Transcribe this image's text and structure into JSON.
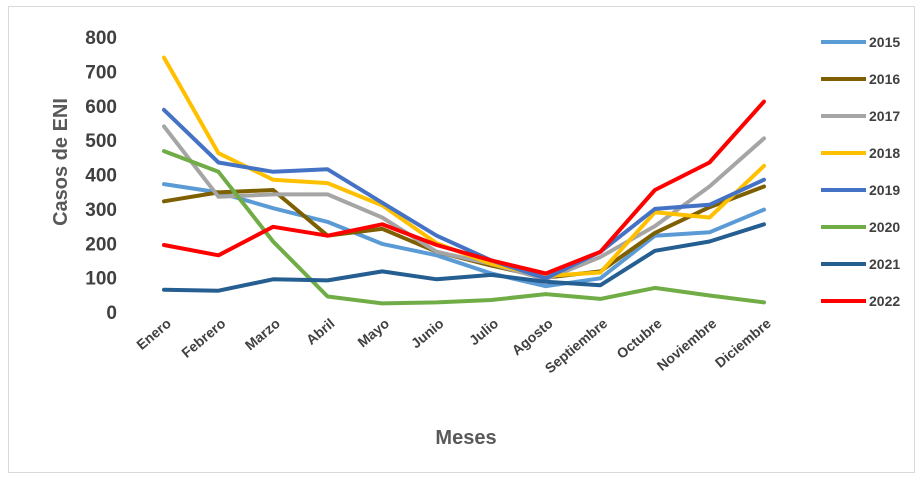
{
  "chart_data": {
    "type": "line",
    "title": "",
    "xlabel": "Meses",
    "ylabel": "Casos de ENI",
    "ylim": [
      0,
      800
    ],
    "yticks": [
      "0",
      "100",
      "200",
      "300",
      "400",
      "500",
      "600",
      "700",
      "800"
    ],
    "grid": false,
    "legend_position": "right",
    "categories": [
      "Enero",
      "Febrero",
      "Marzo",
      "Abril",
      "Mayo",
      "Junio",
      "Julio",
      "Agosto",
      "Septiembre",
      "Octubre",
      "Noviembre",
      "Diciembre"
    ],
    "series": [
      {
        "name": "2015",
        "color": "#5b9bd5",
        "values": [
          372,
          348,
          302,
          262,
          198,
          165,
          112,
          75,
          98,
          222,
          232,
          298
        ]
      },
      {
        "name": "2016",
        "color": "#7f6000",
        "values": [
          322,
          348,
          355,
          222,
          242,
          175,
          135,
          100,
          118,
          230,
          305,
          365
        ]
      },
      {
        "name": "2017",
        "color": "#a5a5a5",
        "values": [
          540,
          335,
          342,
          342,
          275,
          175,
          140,
          95,
          160,
          250,
          365,
          505
        ]
      },
      {
        "name": "2018",
        "color": "#ffc000",
        "values": [
          740,
          462,
          385,
          375,
          310,
          200,
          140,
          105,
          115,
          290,
          275,
          425
        ]
      },
      {
        "name": "2019",
        "color": "#4472c4",
        "values": [
          588,
          435,
          408,
          415,
          318,
          222,
          150,
          98,
          175,
          300,
          312,
          385
        ]
      },
      {
        "name": "2020",
        "color": "#70ad47",
        "values": [
          468,
          408,
          205,
          45,
          25,
          28,
          35,
          52,
          38,
          70,
          48,
          28
        ]
      },
      {
        "name": "2021",
        "color": "#255e91",
        "values": [
          65,
          62,
          95,
          92,
          118,
          95,
          108,
          88,
          78,
          178,
          205,
          255
        ]
      },
      {
        "name": "2022",
        "color": "#ff0000",
        "values": [
          195,
          165,
          248,
          222,
          255,
          195,
          150,
          112,
          175,
          355,
          435,
          612
        ]
      }
    ]
  }
}
